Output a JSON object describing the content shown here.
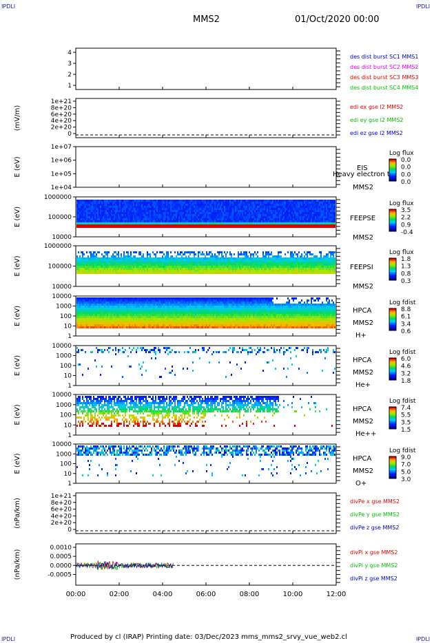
{
  "corners": {
    "tl": "IPDLI",
    "tr": "IPDLI",
    "bl": "IPDLI",
    "br": "IPDLI"
  },
  "header": {
    "spacecraft": "MMS2",
    "date": "01/Oct/2020 00:00"
  },
  "footer": {
    "text": "Produced by cl (IRAP)   Printing date: 03/Dec/2023   mms_mms2_srvy_vue_web2.cl"
  },
  "colors": {
    "red": "#e00000",
    "green": "#00c000",
    "blue": "#0000c0",
    "magenta": "#e000e0"
  },
  "chart_data": {
    "type": "heatmap",
    "x_ticks": [
      "00:00",
      "02:00",
      "04:00",
      "06:00",
      "08:00",
      "10:00",
      "12:00"
    ],
    "panels": [
      {
        "id": "burst",
        "type": "line",
        "ylabel": "",
        "yticks": [
          "4",
          "3",
          "2",
          "1"
        ],
        "legend": [
          {
            "label": "des dist burst SC1 MMS1",
            "color": "#0000c0"
          },
          {
            "label": "des dist burst SC2 MMS2",
            "color": "#e000e0"
          },
          {
            "label": "des dist burst SC3 MMS3",
            "color": "#e00000"
          },
          {
            "label": "des dist burst SC4 MMS4",
            "color": "#00c000"
          }
        ]
      },
      {
        "id": "edi",
        "type": "line",
        "ylabel": "(mV/m)",
        "yticks": [
          "1e+21",
          "8e+20",
          "6e+20",
          "4e+20",
          "2e+20",
          "0"
        ],
        "legend": [
          {
            "label": "edi ex gse l2 MMS2",
            "color": "#e00000"
          },
          {
            "label": "edi ey gse l2 MMS2",
            "color": "#00c000"
          },
          {
            "label": "edi ez gse l2 MMS2",
            "color": "#0000c0"
          }
        ]
      },
      {
        "id": "eis",
        "type": "heatmap",
        "ylabel": "E (eV)",
        "yticks": [
          "1e+07",
          "1e+06",
          "1e+05",
          "1e+04"
        ],
        "labels": [
          "EIS",
          "Heavy electron to",
          "MMS2"
        ],
        "cbar_title": "Log flux",
        "cbar_ticks": [
          "0.0",
          "0.0",
          "0.0",
          "0.0"
        ]
      },
      {
        "id": "feepse",
        "type": "heatmap",
        "ylabel": "E (eV)",
        "yticks": [
          "1000000",
          "100000",
          "10000"
        ],
        "labels": [
          "FEEPSE",
          "MMS2"
        ],
        "cbar_title": "Log flux",
        "cbar_ticks": [
          "3.5",
          "2.2",
          "0.9",
          "-0.4"
        ]
      },
      {
        "id": "feepsi",
        "type": "heatmap",
        "ylabel": "E (eV)",
        "yticks": [
          "1000000",
          "100000",
          "10000"
        ],
        "labels": [
          "FEEPSI",
          "MMS2"
        ],
        "cbar_title": "Log flux",
        "cbar_ticks": [
          "1.8",
          "1.3",
          "0.8",
          "0.3"
        ]
      },
      {
        "id": "hpca_h",
        "type": "heatmap",
        "ylabel": "E (eV)",
        "yticks": [
          "10000",
          "1000",
          "100",
          "10",
          "1"
        ],
        "labels": [
          "HPCA",
          "MMS2",
          "H+"
        ],
        "cbar_title": "Log fdist",
        "cbar_ticks": [
          "8.8",
          "6.1",
          "3.4",
          "0.6"
        ]
      },
      {
        "id": "hpca_he",
        "type": "heatmap",
        "ylabel": "E (eV)",
        "yticks": [
          "10000",
          "1000",
          "100",
          "10",
          "1"
        ],
        "labels": [
          "HPCA",
          "MMS2",
          "He+"
        ],
        "cbar_title": "Log fdist",
        "cbar_ticks": [
          "6.0",
          "4.6",
          "3.2",
          "1.8"
        ]
      },
      {
        "id": "hpca_hepp",
        "type": "heatmap",
        "ylabel": "E (eV)",
        "yticks": [
          "10000",
          "1000",
          "100",
          "10",
          "1"
        ],
        "labels": [
          "HPCA",
          "MMS2",
          "He++"
        ],
        "cbar_title": "Log fdist",
        "cbar_ticks": [
          "7.4",
          "5.5",
          "3.5",
          "1.5"
        ]
      },
      {
        "id": "hpca_o",
        "type": "heatmap",
        "ylabel": "E (eV)",
        "yticks": [
          "10000",
          "1000",
          "100",
          "10",
          "1"
        ],
        "labels": [
          "HPCA",
          "MMS2",
          "O+"
        ],
        "cbar_title": "Log fdist",
        "cbar_ticks": [
          "9.0",
          "7.0",
          "5.0",
          "3.0"
        ]
      },
      {
        "id": "divpe",
        "type": "line",
        "ylabel": "(nPa/km)",
        "yticks": [
          "1e+21",
          "8e+20",
          "6e+20",
          "4e+20",
          "2e+20",
          "0"
        ],
        "legend": [
          {
            "label": "divPe x gse MMS2",
            "color": "#e00000"
          },
          {
            "label": "divPe y gse MMS2",
            "color": "#00c000"
          },
          {
            "label": "divPe z gse MMS2",
            "color": "#0000c0"
          }
        ]
      },
      {
        "id": "divpi",
        "type": "line",
        "ylabel": "(nPa/km)",
        "yticks": [
          "0.0010",
          "0.0005",
          "0.0000",
          "-0.0005"
        ],
        "legend": [
          {
            "label": "divPi x gse MMS2",
            "color": "#e00000"
          },
          {
            "label": "divPi y gse MMS2",
            "color": "#00c000"
          },
          {
            "label": "divPi z gse MMS2",
            "color": "#0000c0"
          }
        ]
      }
    ]
  }
}
